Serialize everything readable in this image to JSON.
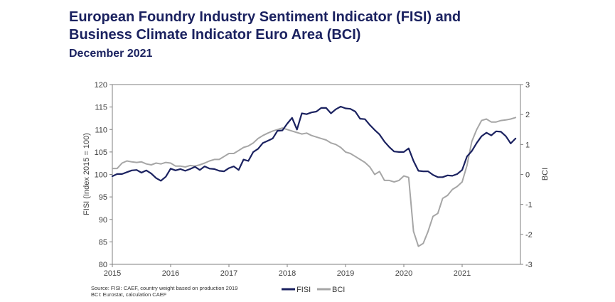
{
  "header": {
    "title_line1": "European Foundry Industry Sentiment Indicator (FISI) and",
    "title_line2": "Business Climate Indicator Euro Area (BCI)",
    "subtitle": "December 2021"
  },
  "source": {
    "line1": "Source: FISI: CAEF, country weight based on production 2019",
    "line2": "BCI: Eurostat, calculation CAEF"
  },
  "colors": {
    "fisi": "#1b2260",
    "bci": "#a6a6a6",
    "title": "#1b2260"
  },
  "chart_data": {
    "type": "line",
    "x_start": 2015.0,
    "x_step": 0.08333,
    "xlim": [
      2015,
      2022
    ],
    "xticks": [
      "2015",
      "2016",
      "2017",
      "2018",
      "2019",
      "2020",
      "2021"
    ],
    "y_left": {
      "label": "FISI (Index 2015 = 100)",
      "lim": [
        80,
        120
      ],
      "ticks": [
        "80",
        "85",
        "90",
        "95",
        "100",
        "105",
        "110",
        "115",
        "120"
      ]
    },
    "y_right": {
      "label": "BCI",
      "lim": [
        -3,
        3
      ],
      "ticks": [
        "-3",
        "-2",
        "-1",
        "0",
        "1",
        "2",
        "3"
      ]
    },
    "legend": {
      "position": "bottom-center"
    },
    "series": [
      {
        "name": "FISI",
        "axis": "left",
        "values": [
          99.6,
          100.1,
          100.1,
          100.5,
          100.9,
          101.0,
          100.4,
          100.9,
          100.2,
          99.2,
          98.6,
          99.5,
          101.3,
          100.9,
          101.2,
          100.8,
          101.2,
          101.7,
          101.0,
          101.8,
          101.3,
          101.2,
          100.8,
          100.7,
          101.4,
          101.8,
          101.0,
          103.3,
          103.0,
          105.0,
          105.7,
          107.0,
          107.5,
          108.0,
          109.7,
          109.8,
          111.3,
          112.6,
          110.0,
          113.6,
          113.4,
          113.8,
          114.0,
          114.8,
          114.8,
          113.6,
          114.5,
          115.1,
          114.7,
          114.6,
          114.0,
          112.4,
          112.3,
          111.0,
          109.9,
          108.9,
          107.3,
          106.1,
          105.1,
          105.0,
          105.0,
          105.8,
          103.0,
          100.8,
          100.7,
          100.7,
          99.9,
          99.4,
          99.4,
          99.8,
          99.7,
          100.1,
          101.0,
          104.0,
          105.2,
          107.0,
          108.5,
          109.3,
          108.7,
          109.6,
          109.5,
          108.5,
          106.9,
          108.0
        ]
      },
      {
        "name": "BCI",
        "axis": "right",
        "values": [
          0.2,
          0.2,
          0.38,
          0.45,
          0.42,
          0.4,
          0.42,
          0.35,
          0.32,
          0.38,
          0.35,
          0.4,
          0.38,
          0.28,
          0.28,
          0.25,
          0.3,
          0.28,
          0.32,
          0.38,
          0.45,
          0.5,
          0.5,
          0.6,
          0.7,
          0.7,
          0.8,
          0.9,
          0.95,
          1.05,
          1.2,
          1.3,
          1.38,
          1.45,
          1.5,
          1.55,
          1.5,
          1.45,
          1.4,
          1.35,
          1.38,
          1.3,
          1.25,
          1.2,
          1.15,
          1.05,
          1.0,
          0.9,
          0.75,
          0.7,
          0.6,
          0.5,
          0.4,
          0.25,
          0.0,
          0.1,
          -0.2,
          -0.2,
          -0.25,
          -0.2,
          -0.05,
          -0.1,
          -1.9,
          -2.4,
          -2.3,
          -1.9,
          -1.4,
          -1.3,
          -0.8,
          -0.7,
          -0.5,
          -0.4,
          -0.25,
          0.3,
          1.1,
          1.5,
          1.8,
          1.85,
          1.75,
          1.75,
          1.8,
          1.82,
          1.85,
          1.9
        ]
      }
    ]
  }
}
